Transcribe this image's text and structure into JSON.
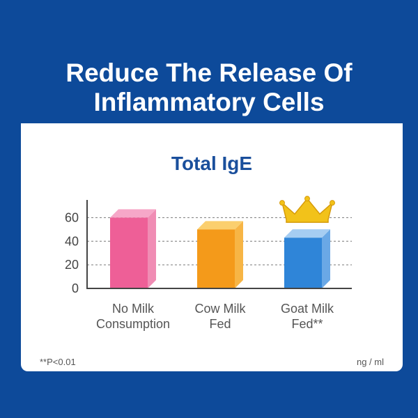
{
  "headline": {
    "line1": "Reduce The Release Of",
    "line2": "Inflammatory Cells"
  },
  "footnote": "**P<0.01",
  "unit": "ng / ml",
  "colors": {
    "background": "#0d4a9a",
    "title": "#1a4f9c",
    "crown": "#f2c21a"
  },
  "chart_data": {
    "type": "bar",
    "title": "Total IgE",
    "categories": [
      [
        "No Milk",
        "Consumption"
      ],
      [
        "Cow Milk",
        "Fed"
      ],
      [
        "Goat Milk",
        "Fed**"
      ]
    ],
    "values": [
      60,
      50,
      43
    ],
    "yticks": [
      0,
      20,
      40,
      60
    ],
    "ylim": [
      0,
      75
    ],
    "grid": true,
    "highlight": {
      "category_index": 2,
      "icon": "crown-icon"
    },
    "bar_colors": [
      {
        "front": "#ee5f97",
        "side": "#f08cb4",
        "top": "#f6a7c8"
      },
      {
        "front": "#f49a1a",
        "side": "#f7b545",
        "top": "#fbcf6e"
      },
      {
        "front": "#2f85d8",
        "side": "#6aa8e6",
        "top": "#a6cdf2"
      }
    ]
  }
}
